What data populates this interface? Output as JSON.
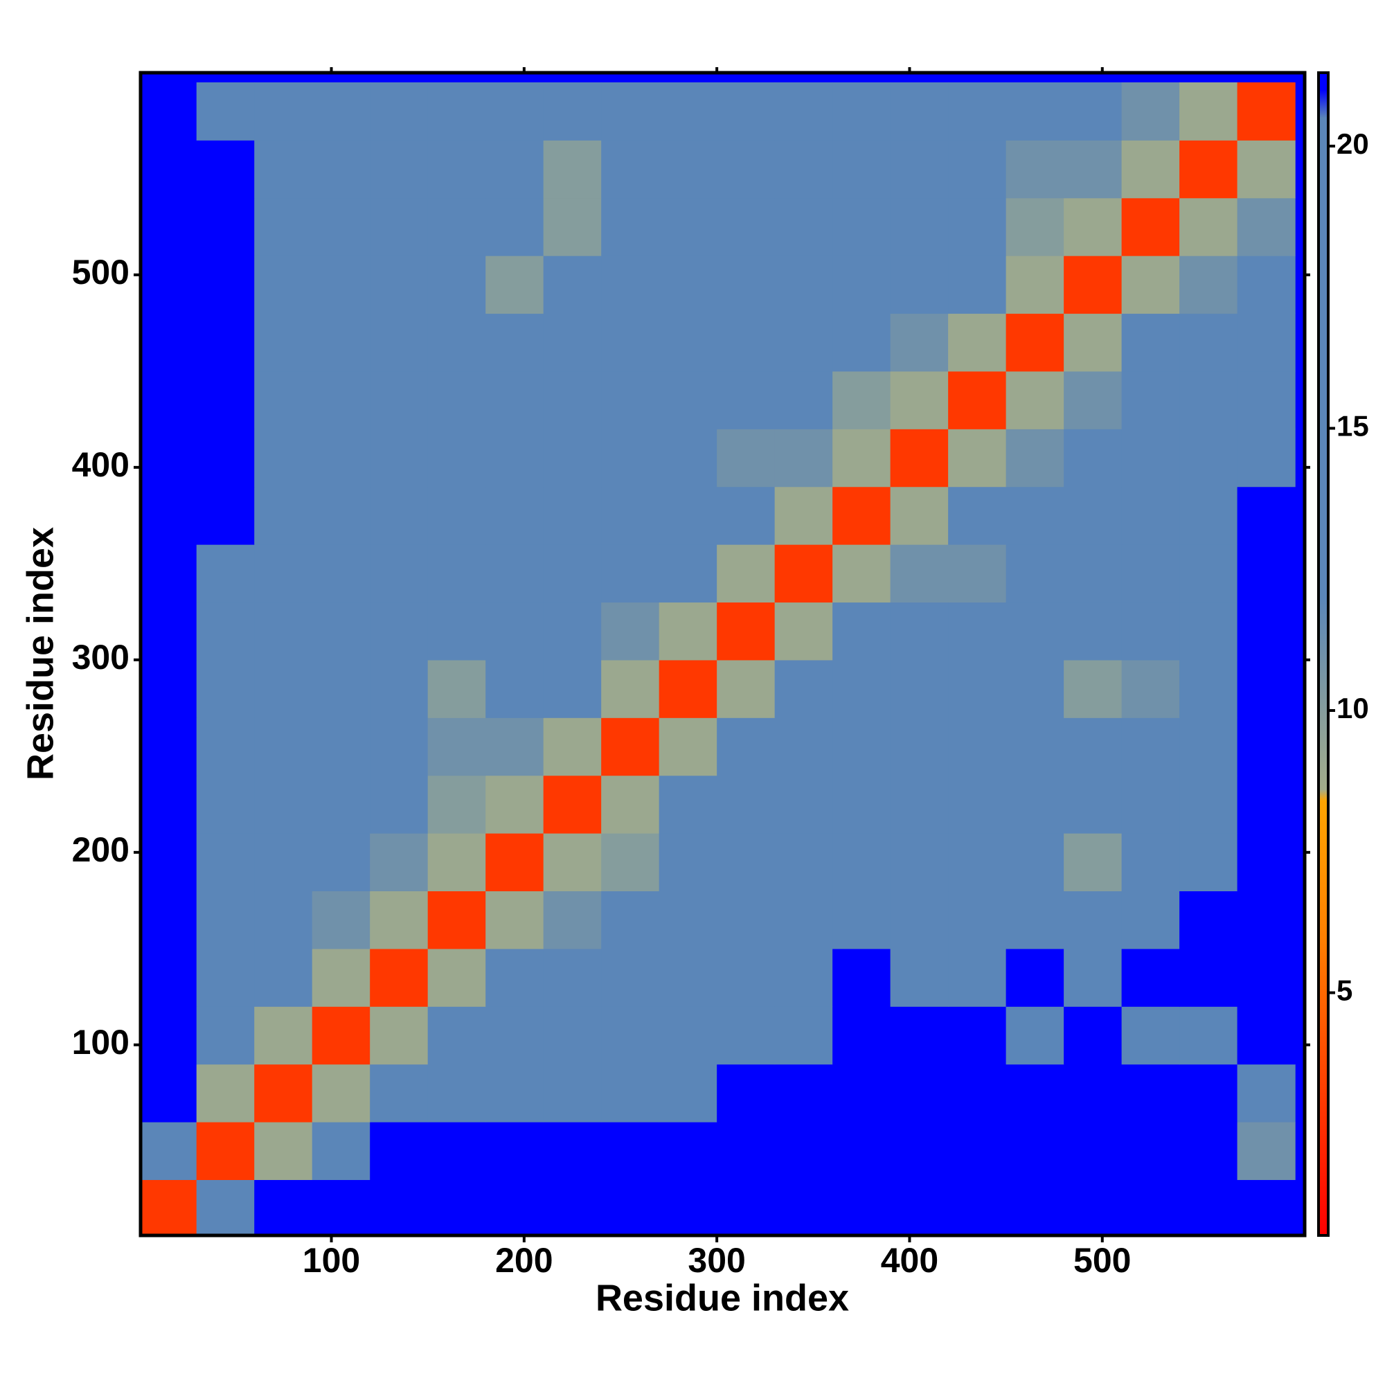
{
  "chart_data": {
    "type": "heatmap",
    "x_label": "Residue index",
    "y_label": "Residue index",
    "x": [
      15,
      45,
      75,
      105,
      135,
      165,
      195,
      225,
      255,
      285,
      315,
      345,
      375,
      405,
      435,
      465,
      495,
      525,
      555,
      585
    ],
    "y": [
      15,
      45,
      75,
      105,
      135,
      165,
      195,
      225,
      255,
      285,
      315,
      345,
      375,
      405,
      435,
      465,
      495,
      525,
      555,
      585
    ],
    "z": [
      [
        3,
        12,
        21,
        21,
        21,
        21,
        21,
        21,
        21,
        21,
        21,
        21,
        21,
        21,
        21,
        21,
        21,
        21,
        21,
        21
      ],
      [
        12,
        3,
        9,
        14,
        21,
        21,
        21,
        21,
        21,
        21,
        21,
        21,
        21,
        21,
        21,
        21,
        21,
        21,
        21,
        11
      ],
      [
        21,
        9,
        3,
        9,
        14,
        16,
        16,
        17,
        17,
        17,
        21,
        21,
        21,
        21,
        21,
        21,
        21,
        21,
        21,
        18
      ],
      [
        21,
        14,
        9,
        3,
        9,
        12,
        16,
        16,
        17,
        17,
        18,
        19,
        21,
        21,
        21,
        13,
        21,
        14,
        18,
        21
      ],
      [
        21,
        15,
        13,
        9,
        3,
        9,
        13,
        12,
        16,
        17,
        17,
        18,
        21,
        19,
        18,
        21,
        17,
        21,
        21,
        21
      ],
      [
        21,
        16,
        16,
        11,
        9,
        3,
        9,
        11,
        17,
        16,
        17,
        18,
        19,
        20,
        18,
        17,
        17,
        18,
        21,
        21
      ],
      [
        21,
        16,
        16,
        13,
        11,
        9,
        3,
        9,
        10,
        17,
        17,
        16,
        18,
        17,
        16,
        17,
        10,
        16,
        12,
        21
      ],
      [
        21,
        16,
        17,
        16,
        12,
        10,
        9,
        3,
        9,
        13,
        17,
        16,
        17,
        16,
        18,
        17,
        16,
        17,
        17,
        21
      ],
      [
        21,
        17,
        16,
        16,
        15,
        11,
        11,
        9,
        3,
        9,
        12,
        17,
        17,
        16,
        16,
        17,
        17,
        16,
        17,
        21
      ],
      [
        21,
        18,
        16,
        17,
        16,
        10,
        12,
        12,
        9,
        3,
        9,
        17,
        12,
        16,
        16,
        16,
        10,
        11,
        16,
        21
      ],
      [
        21,
        20,
        17,
        16,
        17,
        16,
        17,
        16,
        11,
        9,
        3,
        9,
        12,
        16,
        16,
        16,
        17,
        16,
        17,
        21
      ],
      [
        21,
        20,
        17,
        16,
        16,
        16,
        17,
        17,
        16,
        12,
        9,
        3,
        9,
        11,
        11,
        16,
        16,
        17,
        16,
        21
      ],
      [
        21,
        21,
        17,
        16,
        17,
        17,
        17,
        16,
        16,
        16,
        12,
        9,
        3,
        9,
        12,
        16,
        17,
        17,
        16,
        21
      ],
      [
        21,
        21,
        19,
        17,
        16,
        16,
        16,
        16,
        16,
        16,
        11,
        11,
        9,
        3,
        9,
        11,
        17,
        16,
        17,
        20
      ],
      [
        21,
        21,
        20,
        14,
        16,
        17,
        16,
        17,
        17,
        16,
        13,
        12,
        10,
        9,
        3,
        9,
        11,
        16,
        17,
        20
      ],
      [
        21,
        21,
        20,
        17,
        16,
        16,
        17,
        16,
        16,
        17,
        16,
        12,
        16,
        11,
        9,
        3,
        9,
        12,
        16,
        18
      ],
      [
        21,
        21,
        19,
        16,
        16,
        17,
        10,
        16,
        16,
        12,
        16,
        16,
        16,
        16,
        12,
        9,
        3,
        9,
        11,
        17
      ],
      [
        21,
        21,
        18,
        14,
        16,
        16,
        16,
        10,
        16,
        16,
        12,
        12,
        16,
        16,
        16,
        10,
        9,
        3,
        9,
        11
      ],
      [
        21,
        21,
        20,
        19,
        17,
        17,
        17,
        10,
        18,
        17,
        16,
        18,
        16,
        16,
        17,
        11,
        11,
        9,
        3,
        9
      ],
      [
        21,
        14,
        20,
        17,
        18,
        20,
        20,
        17,
        18,
        20,
        20,
        19,
        19,
        19,
        19,
        17,
        16,
        11,
        9,
        3
      ]
    ],
    "xlim": [
      1,
      605
    ],
    "ylim": [
      1,
      605
    ],
    "xticks": [
      100,
      200,
      300,
      400,
      500
    ],
    "yticks": [
      100,
      200,
      300,
      400,
      500
    ],
    "colorbar_lim": [
      0.7,
      21.3
    ],
    "colorbar_ticks": [
      5,
      10,
      15,
      20
    ],
    "colorscale": [
      {
        "value": 0.7,
        "color": "#ff0000"
      },
      {
        "value": 6,
        "color": "#ff8000"
      },
      {
        "value": 8.4,
        "color": "#ffa500"
      },
      {
        "value": 8.6,
        "color": "#a3ad8a"
      },
      {
        "value": 12,
        "color": "#5b86b8"
      },
      {
        "value": 20.5,
        "color": "#5b86b8"
      },
      {
        "value": 21,
        "color": "#0000ff"
      }
    ]
  }
}
